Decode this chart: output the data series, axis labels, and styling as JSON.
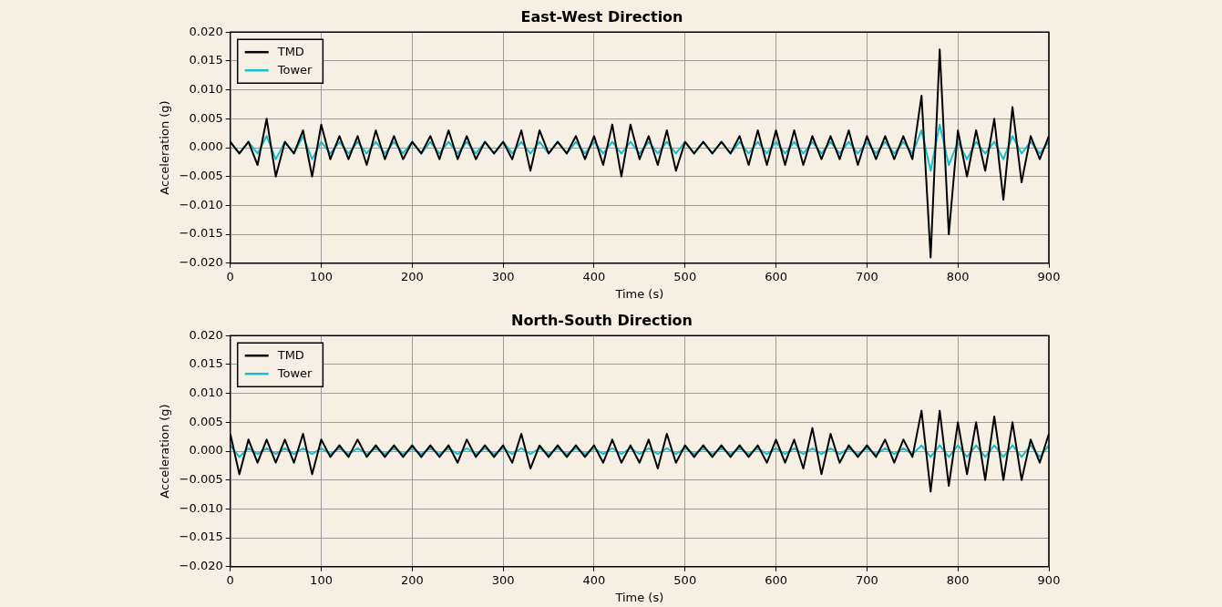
{
  "chart_data": [
    {
      "type": "line",
      "title": "East-West Direction",
      "xlabel": "Time (s)",
      "ylabel": "Acceleration (g)",
      "x": [
        0,
        10,
        20,
        30,
        40,
        50,
        60,
        70,
        80,
        90,
        100,
        110,
        120,
        130,
        140,
        150,
        160,
        170,
        180,
        190,
        200,
        210,
        220,
        230,
        240,
        250,
        260,
        270,
        280,
        290,
        300,
        310,
        320,
        330,
        340,
        350,
        360,
        370,
        380,
        390,
        400,
        410,
        420,
        430,
        440,
        450,
        460,
        470,
        480,
        490,
        500,
        510,
        520,
        530,
        540,
        550,
        560,
        570,
        580,
        590,
        600,
        610,
        620,
        630,
        640,
        650,
        660,
        670,
        680,
        690,
        700,
        710,
        720,
        730,
        740,
        750,
        760,
        770,
        780,
        790,
        800,
        810,
        820,
        830,
        840,
        850,
        860,
        870,
        880,
        890,
        900
      ],
      "series": [
        {
          "name": "TMD",
          "color": "#000000",
          "values": [
            0.001,
            -0.001,
            0.001,
            -0.003,
            0.005,
            -0.005,
            0.001,
            -0.001,
            0.003,
            -0.005,
            0.004,
            -0.002,
            0.002,
            -0.002,
            0.002,
            -0.003,
            0.003,
            -0.002,
            0.002,
            -0.002,
            0.001,
            -0.001,
            0.002,
            -0.002,
            0.003,
            -0.002,
            0.002,
            -0.002,
            0.001,
            -0.001,
            0.001,
            -0.002,
            0.003,
            -0.004,
            0.003,
            -0.001,
            0.001,
            -0.001,
            0.002,
            -0.002,
            0.002,
            -0.003,
            0.004,
            -0.005,
            0.004,
            -0.002,
            0.002,
            -0.003,
            0.003,
            -0.004,
            0.001,
            -0.001,
            0.001,
            -0.001,
            0.001,
            -0.001,
            0.002,
            -0.003,
            0.003,
            -0.003,
            0.003,
            -0.003,
            0.003,
            -0.003,
            0.002,
            -0.002,
            0.002,
            -0.002,
            0.003,
            -0.003,
            0.002,
            -0.002,
            0.002,
            -0.002,
            0.002,
            -0.002,
            0.009,
            -0.019,
            0.017,
            -0.015,
            0.003,
            -0.005,
            0.003,
            -0.004,
            0.005,
            -0.009,
            0.007,
            -0.006,
            0.002,
            -0.002,
            0.002
          ]
        },
        {
          "name": "Tower",
          "color": "#17becf",
          "values": [
            0.001,
            -0.001,
            0.001,
            -0.001,
            0.002,
            -0.002,
            0.001,
            -0.001,
            0.002,
            -0.002,
            0.001,
            -0.001,
            0.001,
            -0.001,
            0.001,
            -0.001,
            0.001,
            -0.001,
            0.001,
            -0.001,
            0.001,
            -0.001,
            0.001,
            -0.001,
            0.001,
            -0.001,
            0.001,
            -0.001,
            0.001,
            -0.001,
            0.001,
            -0.001,
            0.001,
            -0.001,
            0.001,
            -0.001,
            0.001,
            -0.001,
            0.001,
            -0.001,
            0.001,
            -0.001,
            0.001,
            -0.001,
            0.001,
            -0.001,
            0.001,
            -0.001,
            0.001,
            -0.001,
            0.001,
            -0.001,
            0.001,
            -0.001,
            0.001,
            -0.001,
            0.001,
            -0.001,
            0.001,
            -0.001,
            0.001,
            -0.001,
            0.001,
            -0.001,
            0.001,
            -0.001,
            0.001,
            -0.001,
            0.001,
            -0.001,
            0.001,
            -0.001,
            0.001,
            -0.001,
            0.001,
            -0.001,
            0.003,
            -0.004,
            0.004,
            -0.003,
            0.001,
            -0.002,
            0.001,
            -0.001,
            0.001,
            -0.002,
            0.002,
            -0.001,
            0.001,
            -0.001,
            0.001
          ]
        }
      ],
      "xlim": [
        0,
        900
      ],
      "xticks": [
        0,
        100,
        200,
        300,
        400,
        500,
        600,
        700,
        800,
        900
      ],
      "ylim": [
        -0.02,
        0.02
      ],
      "yticks": [
        {
          "value": -0.02,
          "label": "−0.020"
        },
        {
          "value": -0.015,
          "label": "−0.015"
        },
        {
          "value": -0.01,
          "label": "−0.010"
        },
        {
          "value": -0.005,
          "label": "−0.005"
        },
        {
          "value": 0,
          "label": "0.000"
        },
        {
          "value": 0.005,
          "label": "0.005"
        },
        {
          "value": 0.01,
          "label": "0.010"
        },
        {
          "value": 0.015,
          "label": "0.015"
        },
        {
          "value": 0.02,
          "label": "0.020"
        }
      ],
      "grid": true,
      "legend": "top left",
      "line_style": "solid"
    },
    {
      "type": "line",
      "title": "North-South Direction",
      "xlabel": "Time (s)",
      "ylabel": "Acceleration (g)",
      "x": [
        0,
        10,
        20,
        30,
        40,
        50,
        60,
        70,
        80,
        90,
        100,
        110,
        120,
        130,
        140,
        150,
        160,
        170,
        180,
        190,
        200,
        210,
        220,
        230,
        240,
        250,
        260,
        270,
        280,
        290,
        300,
        310,
        320,
        330,
        340,
        350,
        360,
        370,
        380,
        390,
        400,
        410,
        420,
        430,
        440,
        450,
        460,
        470,
        480,
        490,
        500,
        510,
        520,
        530,
        540,
        550,
        560,
        570,
        580,
        590,
        600,
        610,
        620,
        630,
        640,
        650,
        660,
        670,
        680,
        690,
        700,
        710,
        720,
        730,
        740,
        750,
        760,
        770,
        780,
        790,
        800,
        810,
        820,
        830,
        840,
        850,
        860,
        870,
        880,
        890,
        900
      ],
      "series": [
        {
          "name": "TMD",
          "color": "#000000",
          "values": [
            0.003,
            -0.004,
            0.002,
            -0.002,
            0.002,
            -0.002,
            0.002,
            -0.002,
            0.003,
            -0.004,
            0.002,
            -0.001,
            0.001,
            -0.001,
            0.002,
            -0.001,
            0.001,
            -0.001,
            0.001,
            -0.001,
            0.001,
            -0.001,
            0.001,
            -0.001,
            0.001,
            -0.002,
            0.002,
            -0.001,
            0.001,
            -0.001,
            0.001,
            -0.002,
            0.003,
            -0.003,
            0.001,
            -0.001,
            0.001,
            -0.001,
            0.001,
            -0.001,
            0.001,
            -0.002,
            0.002,
            -0.002,
            0.001,
            -0.002,
            0.002,
            -0.003,
            0.003,
            -0.002,
            0.001,
            -0.001,
            0.001,
            -0.001,
            0.001,
            -0.001,
            0.001,
            -0.001,
            0.001,
            -0.002,
            0.002,
            -0.002,
            0.002,
            -0.003,
            0.004,
            -0.004,
            0.003,
            -0.002,
            0.001,
            -0.001,
            0.001,
            -0.001,
            0.002,
            -0.002,
            0.002,
            -0.001,
            0.007,
            -0.007,
            0.007,
            -0.006,
            0.005,
            -0.004,
            0.005,
            -0.005,
            0.006,
            -0.005,
            0.005,
            -0.005,
            0.002,
            -0.002,
            0.003
          ]
        },
        {
          "name": "Tower",
          "color": "#17becf",
          "values": [
            0.001,
            -0.001,
            0.0005,
            -0.0005,
            0.0005,
            -0.0005,
            0.0005,
            -0.0005,
            0.0005,
            -0.0005,
            0.0005,
            -0.0005,
            0.0005,
            -0.0005,
            0.0005,
            -0.0005,
            0.0005,
            -0.0005,
            0.0005,
            -0.0005,
            0.0005,
            -0.0005,
            0.0005,
            -0.0005,
            0.0005,
            -0.0005,
            0.0005,
            -0.0005,
            0.0005,
            -0.0005,
            0.0005,
            -0.0005,
            0.0005,
            -0.0005,
            0.0005,
            -0.0005,
            0.0005,
            -0.0005,
            0.0005,
            -0.0005,
            0.0005,
            -0.0005,
            0.0005,
            -0.0005,
            0.0005,
            -0.0005,
            0.0005,
            -0.0005,
            0.0005,
            -0.0005,
            0.0005,
            -0.0005,
            0.0005,
            -0.0005,
            0.0005,
            -0.0005,
            0.0005,
            -0.0005,
            0.0005,
            -0.0005,
            0.0005,
            -0.0005,
            0.0005,
            -0.0005,
            0.0005,
            -0.0005,
            0.0005,
            -0.0005,
            0.0005,
            -0.0005,
            0.0005,
            -0.0005,
            0.0005,
            -0.0005,
            0.0005,
            -0.0005,
            0.001,
            -0.001,
            0.001,
            -0.001,
            0.001,
            -0.001,
            0.001,
            -0.001,
            0.001,
            -0.001,
            0.001,
            -0.001,
            0.001,
            -0.001,
            0.001
          ]
        }
      ],
      "xlim": [
        0,
        900
      ],
      "xticks": [
        0,
        100,
        200,
        300,
        400,
        500,
        600,
        700,
        800,
        900
      ],
      "ylim": [
        -0.02,
        0.02
      ],
      "yticks": [
        {
          "value": -0.02,
          "label": "−0.020"
        },
        {
          "value": -0.015,
          "label": "−0.015"
        },
        {
          "value": -0.01,
          "label": "−0.010"
        },
        {
          "value": -0.005,
          "label": "−0.005"
        },
        {
          "value": 0,
          "label": "0.000"
        },
        {
          "value": 0.005,
          "label": "0.005"
        },
        {
          "value": 0.01,
          "label": "0.010"
        },
        {
          "value": 0.015,
          "label": "0.015"
        },
        {
          "value": 0.02,
          "label": "0.020"
        }
      ],
      "grid": true,
      "legend": "top left",
      "line_style": "solid"
    }
  ]
}
